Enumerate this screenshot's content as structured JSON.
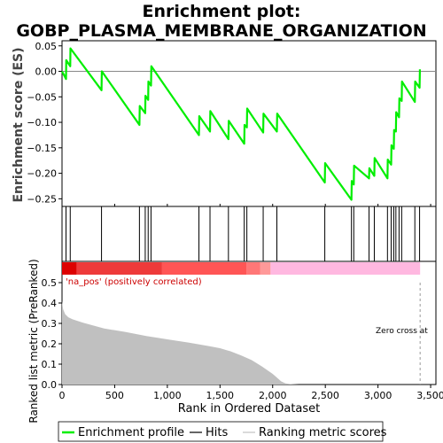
{
  "chart_data": {
    "type": "line",
    "title_line1": "Enrichment plot:",
    "title_line2": "GOBP_PLASMA_MEMBRANE_ORGANIZATION",
    "es_panel": {
      "ylabel": "Enrichment score (ES)",
      "ylim": [
        -0.265,
        0.06
      ],
      "yticks": [
        0.05,
        0.0,
        -0.05,
        -0.1,
        -0.15,
        -0.2,
        -0.25
      ],
      "ytick_labels": [
        "0.05",
        "0.00",
        "−0.05",
        "−0.10",
        "−0.15",
        "−0.20",
        "−0.25"
      ],
      "series": [
        {
          "name": "Enrichment profile",
          "color": "#00ee00",
          "points": [
            [
              0,
              0.0
            ],
            [
              38,
              -0.015
            ],
            [
              40,
              0.022
            ],
            [
              78,
              0.01
            ],
            [
              80,
              0.045
            ],
            [
              375,
              -0.037
            ],
            [
              378,
              0.0
            ],
            [
              735,
              -0.105
            ],
            [
              738,
              -0.068
            ],
            [
              790,
              -0.082
            ],
            [
              792,
              -0.048
            ],
            [
              818,
              -0.056
            ],
            [
              820,
              -0.02
            ],
            [
              845,
              -0.028
            ],
            [
              848,
              0.01
            ],
            [
              1300,
              -0.125
            ],
            [
              1303,
              -0.088
            ],
            [
              1405,
              -0.118
            ],
            [
              1408,
              -0.078
            ],
            [
              1580,
              -0.133
            ],
            [
              1583,
              -0.097
            ],
            [
              1730,
              -0.142
            ],
            [
              1733,
              -0.105
            ],
            [
              1755,
              -0.11
            ],
            [
              1758,
              -0.073
            ],
            [
              1910,
              -0.12
            ],
            [
              1913,
              -0.083
            ],
            [
              2040,
              -0.118
            ],
            [
              2043,
              -0.083
            ],
            [
              2495,
              -0.218
            ],
            [
              2498,
              -0.18
            ],
            [
              2748,
              -0.252
            ],
            [
              2751,
              -0.215
            ],
            [
              2770,
              -0.222
            ],
            [
              2773,
              -0.185
            ],
            [
              2915,
              -0.21
            ],
            [
              2918,
              -0.19
            ],
            [
              2965,
              -0.205
            ],
            [
              2968,
              -0.17
            ],
            [
              3090,
              -0.21
            ],
            [
              3093,
              -0.173
            ],
            [
              3125,
              -0.183
            ],
            [
              3128,
              -0.145
            ],
            [
              3150,
              -0.152
            ],
            [
              3153,
              -0.115
            ],
            [
              3170,
              -0.118
            ],
            [
              3173,
              -0.08
            ],
            [
              3200,
              -0.09
            ],
            [
              3203,
              -0.053
            ],
            [
              3225,
              -0.058
            ],
            [
              3228,
              -0.02
            ],
            [
              3350,
              -0.06
            ],
            [
              3353,
              -0.02
            ],
            [
              3395,
              -0.032
            ],
            [
              3398,
              0.004
            ]
          ]
        }
      ]
    },
    "hits": {
      "name": "Hits",
      "positions": [
        38,
        78,
        375,
        735,
        790,
        818,
        845,
        1300,
        1405,
        1580,
        1730,
        1755,
        1910,
        2040,
        2495,
        2748,
        2770,
        2915,
        2965,
        3090,
        3125,
        3150,
        3170,
        3200,
        3225,
        3350,
        3395
      ]
    },
    "metric_panel": {
      "ylabel": "Ranked list metric (PreRanked)",
      "ylim": [
        0.0,
        0.5
      ],
      "yticks": [
        0.0,
        0.1,
        0.2,
        0.3,
        0.4,
        0.5
      ],
      "ytick_labels": [
        "0.0",
        "0.1",
        "0.2",
        "0.3",
        "0.4",
        "0.5"
      ],
      "series_name": "Ranking metric scores",
      "fill_color": "#c0c0c0",
      "curve": [
        [
          0,
          0.41
        ],
        [
          10,
          0.37
        ],
        [
          30,
          0.345
        ],
        [
          60,
          0.33
        ],
        [
          100,
          0.32
        ],
        [
          200,
          0.303
        ],
        [
          400,
          0.275
        ],
        [
          600,
          0.258
        ],
        [
          800,
          0.238
        ],
        [
          1000,
          0.222
        ],
        [
          1200,
          0.206
        ],
        [
          1400,
          0.188
        ],
        [
          1500,
          0.178
        ],
        [
          1600,
          0.163
        ],
        [
          1700,
          0.143
        ],
        [
          1800,
          0.12
        ],
        [
          1900,
          0.088
        ],
        [
          1950,
          0.07
        ],
        [
          2000,
          0.052
        ],
        [
          2040,
          0.034
        ],
        [
          2080,
          0.016
        ],
        [
          2120,
          0.006
        ],
        [
          2170,
          0.002
        ],
        [
          2250,
          0.0
        ],
        [
          3400,
          0.0
        ]
      ],
      "annotation_pos": "'na_pos' (positively correlated)",
      "annotation_zero": "Zero cross at",
      "zero_cross_line_x": 3400
    },
    "colorbar": {
      "segments": [
        {
          "from": 0,
          "to": 140,
          "color": "#dd0000"
        },
        {
          "from": 140,
          "to": 950,
          "color": "#ee3a3a"
        },
        {
          "from": 950,
          "to": 1750,
          "color": "#ff5555"
        },
        {
          "from": 1750,
          "to": 1880,
          "color": "#ff7777"
        },
        {
          "from": 1880,
          "to": 1980,
          "color": "#ff9999"
        },
        {
          "from": 1980,
          "to": 3400,
          "color": "#ffb8e0"
        }
      ]
    },
    "xaxis": {
      "xlabel": "Rank in Ordered Dataset",
      "xlim": [
        0,
        3550
      ],
      "xticks": [
        0,
        500,
        1000,
        1500,
        2000,
        2500,
        3000,
        3500
      ],
      "xtick_labels": [
        "0",
        "500",
        "1,000",
        "1,500",
        "2,000",
        "2,500",
        "3,000",
        "3,500"
      ]
    },
    "legend": {
      "placement": "bottom",
      "entries": [
        {
          "label": "Enrichment profile",
          "color": "#00ee00"
        },
        {
          "label": "Hits",
          "color": "#000000"
        },
        {
          "label": "Ranking metric scores",
          "color": "#c0c0c0"
        }
      ]
    }
  }
}
